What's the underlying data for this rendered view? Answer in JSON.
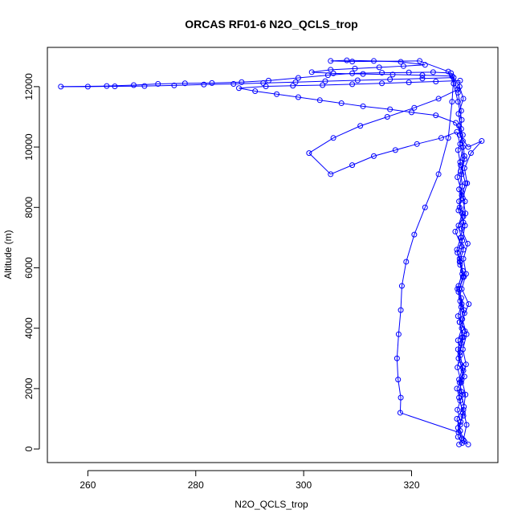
{
  "chart_data": {
    "type": "scatter",
    "title": "ORCAS RF01-6 N2O_QCLS_trop",
    "xlabel": "N2O_QCLS_trop",
    "ylabel": "Altitude (m)",
    "xlim": [
      252.5,
      336
    ],
    "ylim": [
      -450,
      13300
    ],
    "xticks": [
      260,
      280,
      300,
      320
    ],
    "yticks": [
      0,
      2000,
      4000,
      6000,
      8000,
      10000,
      12000
    ],
    "grid": false,
    "legend": "none",
    "series": [
      {
        "color": "#0000ff",
        "marker": "open-circle",
        "line": true,
        "points": [
          [
            328.8,
            150
          ],
          [
            329.3,
            350
          ],
          [
            328.6,
            700
          ],
          [
            329.6,
            1100
          ],
          [
            329.0,
            1600
          ],
          [
            328.4,
            2000
          ],
          [
            329.8,
            2400
          ],
          [
            329.1,
            2800
          ],
          [
            328.6,
            3300
          ],
          [
            329.4,
            3700
          ],
          [
            328.9,
            4200
          ],
          [
            329.7,
            4600
          ],
          [
            329.2,
            5000
          ],
          [
            328.7,
            5400
          ],
          [
            329.5,
            5900
          ],
          [
            328.9,
            6300
          ],
          [
            329.3,
            6700
          ],
          [
            328.1,
            7200
          ],
          [
            329.6,
            7700
          ],
          [
            328.8,
            8200
          ],
          [
            329.4,
            8700
          ],
          [
            329.1,
            9200
          ],
          [
            329.8,
            9700
          ],
          [
            329.5,
            10200
          ],
          [
            329.2,
            10600
          ],
          [
            328.7,
            11100
          ],
          [
            329.6,
            11600
          ],
          [
            328.9,
            12000
          ],
          [
            327.3,
            12450
          ],
          [
            324.0,
            12480
          ],
          [
            319.5,
            12470
          ],
          [
            314.5,
            12460
          ],
          [
            309.0,
            12440
          ],
          [
            304.5,
            12380
          ],
          [
            299.0,
            12290
          ],
          [
            293.5,
            12200
          ],
          [
            288.5,
            12150
          ],
          [
            283.0,
            12120
          ],
          [
            278.0,
            12110
          ],
          [
            273.0,
            12090
          ],
          [
            268.5,
            12050
          ],
          [
            263.5,
            12020
          ],
          [
            255.0,
            12000
          ],
          [
            260.0,
            12000
          ],
          [
            265.0,
            12010
          ],
          [
            270.5,
            12020
          ],
          [
            276.0,
            12040
          ],
          [
            281.5,
            12070
          ],
          [
            287.0,
            12090
          ],
          [
            292.5,
            12120
          ],
          [
            298.5,
            12150
          ],
          [
            304.0,
            12180
          ],
          [
            310.0,
            12210
          ],
          [
            316.0,
            12240
          ],
          [
            322.0,
            12270
          ],
          [
            327.8,
            12300
          ],
          [
            327.5,
            11500
          ],
          [
            326.8,
            10300
          ],
          [
            325.0,
            9100
          ],
          [
            322.5,
            8000
          ],
          [
            320.5,
            7100
          ],
          [
            319.0,
            6200
          ],
          [
            318.2,
            5400
          ],
          [
            318.0,
            4600
          ],
          [
            317.6,
            3800
          ],
          [
            317.3,
            3000
          ],
          [
            317.5,
            2300
          ],
          [
            318.0,
            1700
          ],
          [
            317.9,
            1200
          ],
          [
            328.7,
            550
          ],
          [
            329.1,
            900
          ],
          [
            328.5,
            1300
          ],
          [
            329.4,
            1800
          ],
          [
            328.9,
            2200
          ],
          [
            329.6,
            2600
          ],
          [
            328.7,
            3000
          ],
          [
            329.2,
            3500
          ],
          [
            329.9,
            3900
          ],
          [
            328.6,
            4400
          ],
          [
            329.3,
            4800
          ],
          [
            328.8,
            5300
          ],
          [
            329.7,
            5700
          ],
          [
            329.0,
            6100
          ],
          [
            328.5,
            6500
          ],
          [
            329.4,
            6900
          ],
          [
            329.9,
            7400
          ],
          [
            328.7,
            7900
          ],
          [
            329.3,
            8400
          ],
          [
            330.0,
            8800
          ],
          [
            329.1,
            9400
          ],
          [
            328.6,
            9900
          ],
          [
            329.5,
            10400
          ],
          [
            328.2,
            10800
          ],
          [
            324.5,
            11050
          ],
          [
            320.0,
            11150
          ],
          [
            316.0,
            11250
          ],
          [
            311.0,
            11350
          ],
          [
            307.0,
            11450
          ],
          [
            303.0,
            11550
          ],
          [
            299.0,
            11650
          ],
          [
            295.0,
            11750
          ],
          [
            291.0,
            11850
          ],
          [
            288.0,
            11950
          ],
          [
            293.0,
            12010
          ],
          [
            298.0,
            12030
          ],
          [
            303.5,
            12050
          ],
          [
            309.0,
            12080
          ],
          [
            314.5,
            12110
          ],
          [
            319.5,
            12140
          ],
          [
            324.5,
            12170
          ],
          [
            329.0,
            12200
          ],
          [
            328.6,
            11800
          ],
          [
            329.2,
            11200
          ],
          [
            328.8,
            10700
          ],
          [
            329.5,
            10000
          ],
          [
            329.0,
            9500
          ],
          [
            328.5,
            9000
          ],
          [
            329.3,
            8500
          ],
          [
            328.9,
            8000
          ],
          [
            329.6,
            7500
          ],
          [
            329.1,
            7000
          ],
          [
            328.4,
            6600
          ],
          [
            329.0,
            6200
          ],
          [
            329.5,
            5700
          ],
          [
            328.7,
            5200
          ],
          [
            329.2,
            4700
          ],
          [
            328.9,
            4200
          ],
          [
            329.6,
            3700
          ],
          [
            329.0,
            3200
          ],
          [
            328.5,
            2700
          ],
          [
            329.2,
            2200
          ],
          [
            328.8,
            1700
          ],
          [
            329.5,
            1200
          ],
          [
            329.0,
            800
          ],
          [
            328.6,
            400
          ],
          [
            329.4,
            200
          ],
          [
            329.8,
            250
          ],
          [
            329.0,
            600
          ],
          [
            328.4,
            1000
          ],
          [
            329.7,
            1400
          ],
          [
            329.2,
            1900
          ],
          [
            328.8,
            2300
          ],
          [
            329.5,
            2700
          ],
          [
            329.0,
            3100
          ],
          [
            328.6,
            3600
          ],
          [
            329.3,
            4000
          ],
          [
            329.8,
            4500
          ],
          [
            329.0,
            4900
          ],
          [
            328.5,
            5300
          ],
          [
            329.4,
            5800
          ],
          [
            328.9,
            6200
          ],
          [
            329.6,
            6600
          ],
          [
            329.2,
            7000
          ],
          [
            328.7,
            7400
          ],
          [
            329.4,
            7800
          ],
          [
            329.9,
            8200
          ],
          [
            328.8,
            8600
          ],
          [
            329.3,
            9100
          ],
          [
            329.8,
            9600
          ],
          [
            329.0,
            10100
          ],
          [
            328.4,
            10500
          ],
          [
            325.5,
            10300
          ],
          [
            321.0,
            10100
          ],
          [
            317.0,
            9900
          ],
          [
            313.0,
            9700
          ],
          [
            309.0,
            9400
          ],
          [
            305.0,
            9100
          ],
          [
            301.0,
            9800
          ],
          [
            305.5,
            10300
          ],
          [
            310.5,
            10700
          ],
          [
            315.5,
            11000
          ],
          [
            320.5,
            11300
          ],
          [
            325.0,
            11600
          ],
          [
            328.5,
            11900
          ],
          [
            327.5,
            12350
          ],
          [
            322.0,
            12380
          ],
          [
            316.5,
            12400
          ],
          [
            311.0,
            12420
          ],
          [
            305.5,
            12440
          ],
          [
            301.5,
            12480
          ],
          [
            305.0,
            12560
          ],
          [
            309.5,
            12600
          ],
          [
            314.0,
            12640
          ],
          [
            318.5,
            12680
          ],
          [
            322.5,
            12720
          ],
          [
            318.0,
            12820
          ],
          [
            313.0,
            12850
          ],
          [
            308.0,
            12870
          ],
          [
            305.0,
            12850
          ],
          [
            309.0,
            12830
          ],
          [
            321.5,
            12850
          ],
          [
            326.8,
            12500
          ],
          [
            327.8,
            12100
          ],
          [
            328.6,
            11500
          ],
          [
            329.3,
            10900
          ],
          [
            328.9,
            10400
          ],
          [
            330.5,
            10000
          ],
          [
            333.0,
            10200
          ],
          [
            331.0,
            9800
          ],
          [
            329.8,
            9300
          ],
          [
            330.3,
            8800
          ],
          [
            329.5,
            8300
          ],
          [
            330.0,
            7800
          ],
          [
            329.2,
            7300
          ],
          [
            330.4,
            6800
          ],
          [
            329.6,
            6300
          ],
          [
            330.1,
            5800
          ],
          [
            329.3,
            5300
          ],
          [
            330.6,
            4800
          ],
          [
            329.4,
            4300
          ],
          [
            330.2,
            3800
          ],
          [
            329.5,
            3300
          ],
          [
            330.1,
            2800
          ],
          [
            329.3,
            2300
          ],
          [
            330.0,
            1800
          ],
          [
            329.6,
            1300
          ],
          [
            330.2,
            800
          ],
          [
            329.6,
            300
          ],
          [
            330.5,
            150
          ]
        ]
      }
    ]
  }
}
